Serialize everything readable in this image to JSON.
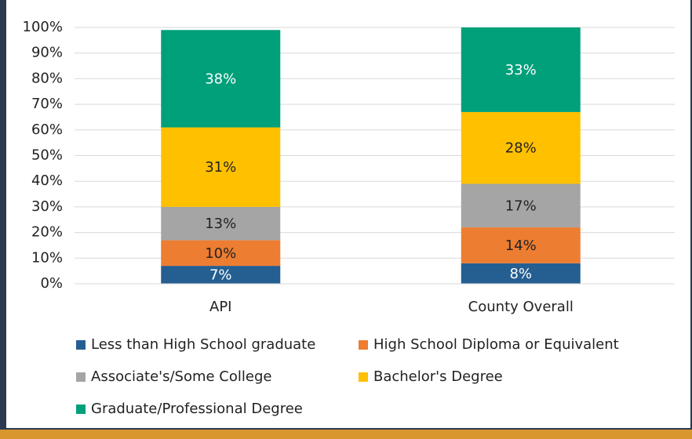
{
  "chart_data": {
    "type": "stacked_bar",
    "categories": [
      "API",
      "County Overall"
    ],
    "series": [
      {
        "name": "Less than High School graduate",
        "color": "#255e91",
        "values": [
          7,
          8
        ],
        "value_labels": [
          "7%",
          "8%"
        ]
      },
      {
        "name": "High School Diploma or Equivalent",
        "color": "#ed7d31",
        "values": [
          10,
          14
        ],
        "value_labels": [
          "10%",
          "14%"
        ]
      },
      {
        "name": "Associate's/Some College",
        "color": "#a5a5a5",
        "values": [
          13,
          17
        ],
        "value_labels": [
          "13%",
          "17%"
        ]
      },
      {
        "name": "Bachelor's Degree",
        "color": "#ffc000",
        "values": [
          31,
          28
        ],
        "value_labels": [
          "31%",
          "28%"
        ]
      },
      {
        "name": "Graduate/Professional Degree",
        "color": "#00a07a",
        "values": [
          38,
          33
        ],
        "value_labels": [
          "38%",
          "33%"
        ]
      }
    ],
    "ylim": [
      0,
      100
    ],
    "yticks": [
      {
        "value": 0,
        "label": "0%"
      },
      {
        "value": 10,
        "label": "10%"
      },
      {
        "value": 20,
        "label": "20%"
      },
      {
        "value": 30,
        "label": "30%"
      },
      {
        "value": 40,
        "label": "40%"
      },
      {
        "value": 50,
        "label": "50%"
      },
      {
        "value": 60,
        "label": "60%"
      },
      {
        "value": 70,
        "label": "70%"
      },
      {
        "value": 80,
        "label": "80%"
      },
      {
        "value": 90,
        "label": "90%"
      },
      {
        "value": 100,
        "label": "100%"
      }
    ],
    "grid": true,
    "legend": "bottom"
  }
}
